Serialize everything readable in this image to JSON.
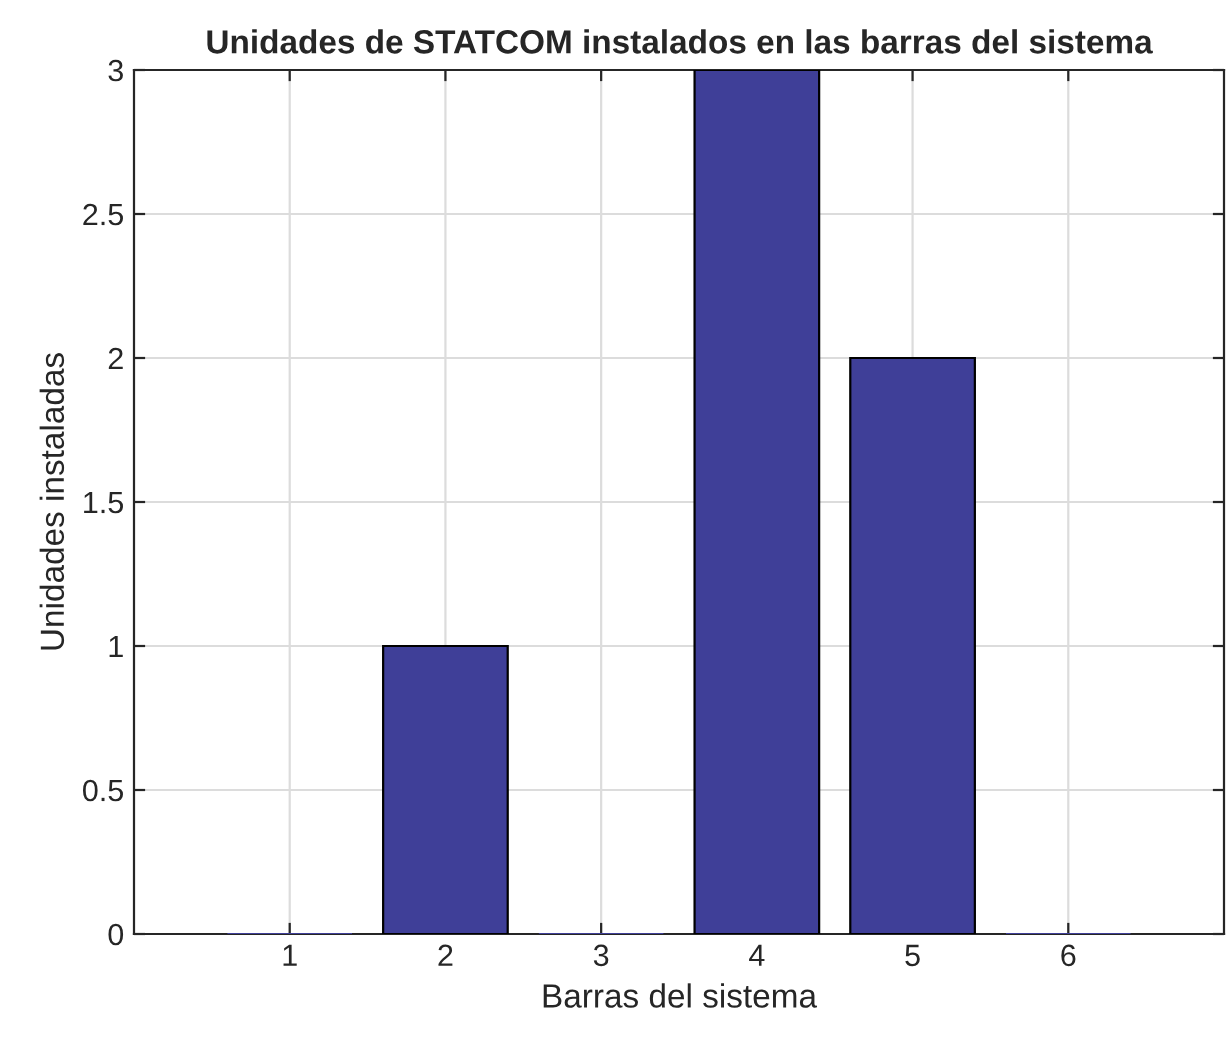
{
  "chart_data": {
    "type": "bar",
    "title": "Unidades de STATCOM instalados en las barras del sistema",
    "xlabel": "Barras del sistema",
    "ylabel": "Unidades instaladas",
    "x": [
      1,
      2,
      3,
      4,
      5,
      6
    ],
    "values": [
      0,
      1,
      0,
      3,
      2,
      0
    ],
    "color": "#3f3f98",
    "xlim": [
      0,
      7
    ],
    "xticks": [
      1,
      2,
      3,
      4,
      5,
      6
    ],
    "ylim": [
      0,
      3
    ],
    "yticks": [
      0,
      0.5,
      1,
      1.5,
      2,
      2.5,
      3
    ],
    "grid": true
  }
}
